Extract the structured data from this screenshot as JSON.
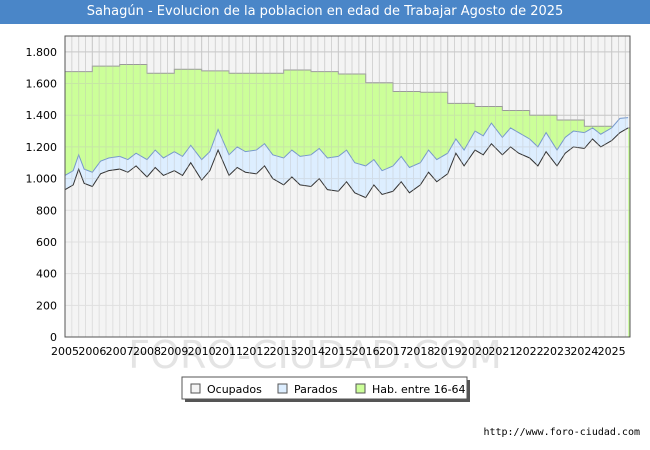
{
  "chart_data": {
    "type": "area",
    "title": "Sahagún - Evolucion de la poblacion en edad de Trabajar Agosto de 2025",
    "xlabel": "",
    "ylabel": "",
    "ylim": [
      0,
      1900
    ],
    "yticks": [
      0,
      200,
      400,
      600,
      800,
      1000,
      1200,
      1400,
      1600,
      1800
    ],
    "ytick_labels": [
      "0",
      "200",
      "400",
      "600",
      "800",
      "1.000",
      "1.200",
      "1.400",
      "1.600",
      "1.800"
    ],
    "xlim": [
      2005,
      2025.67
    ],
    "xtick_labels": [
      "2005",
      "2006",
      "2007",
      "2008",
      "2009",
      "2010",
      "2011",
      "2012",
      "2013",
      "2014",
      "2015",
      "2016",
      "2017",
      "2018",
      "2019",
      "2020",
      "2021",
      "2022",
      "2023",
      "2024",
      "2025"
    ],
    "grid": true,
    "legend_position": "bottom",
    "series": [
      {
        "name": "Hab. entre 16-64",
        "color": "#ccff99",
        "stroke": "#9a9a9a",
        "x": [
          2005,
          2006,
          2007,
          2008,
          2009,
          2010,
          2011,
          2012,
          2013,
          2014,
          2015,
          2016,
          2017,
          2018,
          2019,
          2020,
          2021,
          2022,
          2023,
          2024,
          2025
        ],
        "values": [
          1675,
          1710,
          1720,
          1665,
          1690,
          1680,
          1665,
          1665,
          1685,
          1675,
          1660,
          1605,
          1550,
          1545,
          1475,
          1455,
          1430,
          1400,
          1370,
          1330,
          1320
        ]
      },
      {
        "name": "Parados",
        "color": "#ddeeff",
        "stroke": "#7799cc",
        "x": [
          2005,
          2005.3,
          2005.5,
          2005.7,
          2006,
          2006.3,
          2006.6,
          2007,
          2007.3,
          2007.6,
          2008,
          2008.3,
          2008.6,
          2009,
          2009.3,
          2009.6,
          2010,
          2010.3,
          2010.6,
          2011,
          2011.3,
          2011.6,
          2012,
          2012.3,
          2012.6,
          2013,
          2013.3,
          2013.6,
          2014,
          2014.3,
          2014.6,
          2015,
          2015.3,
          2015.6,
          2016,
          2016.3,
          2016.6,
          2017,
          2017.3,
          2017.6,
          2018,
          2018.3,
          2018.6,
          2019,
          2019.3,
          2019.6,
          2020,
          2020.3,
          2020.6,
          2021,
          2021.3,
          2021.6,
          2022,
          2022.3,
          2022.6,
          2023,
          2023.3,
          2023.6,
          2024,
          2024.3,
          2024.6,
          2025,
          2025.3,
          2025.6
        ],
        "values": [
          1020,
          1050,
          1150,
          1060,
          1040,
          1110,
          1130,
          1140,
          1120,
          1160,
          1120,
          1180,
          1130,
          1170,
          1140,
          1210,
          1120,
          1170,
          1310,
          1150,
          1200,
          1170,
          1180,
          1220,
          1150,
          1130,
          1180,
          1140,
          1150,
          1190,
          1130,
          1140,
          1180,
          1100,
          1080,
          1120,
          1050,
          1080,
          1140,
          1070,
          1100,
          1180,
          1120,
          1160,
          1250,
          1180,
          1300,
          1270,
          1350,
          1260,
          1320,
          1290,
          1250,
          1200,
          1290,
          1180,
          1260,
          1300,
          1290,
          1320,
          1280,
          1320,
          1380,
          1385
        ]
      },
      {
        "name": "Ocupados",
        "color": "#f4f4f4",
        "stroke": "#333333",
        "x": [
          2005,
          2005.3,
          2005.5,
          2005.7,
          2006,
          2006.3,
          2006.6,
          2007,
          2007.3,
          2007.6,
          2008,
          2008.3,
          2008.6,
          2009,
          2009.3,
          2009.6,
          2010,
          2010.3,
          2010.6,
          2011,
          2011.3,
          2011.6,
          2012,
          2012.3,
          2012.6,
          2013,
          2013.3,
          2013.6,
          2014,
          2014.3,
          2014.6,
          2015,
          2015.3,
          2015.6,
          2016,
          2016.3,
          2016.6,
          2017,
          2017.3,
          2017.6,
          2018,
          2018.3,
          2018.6,
          2019,
          2019.3,
          2019.6,
          2020,
          2020.3,
          2020.6,
          2021,
          2021.3,
          2021.6,
          2022,
          2022.3,
          2022.6,
          2023,
          2023.3,
          2023.6,
          2024,
          2024.3,
          2024.6,
          2025,
          2025.3,
          2025.6
        ],
        "values": [
          930,
          960,
          1060,
          970,
          950,
          1030,
          1050,
          1060,
          1040,
          1080,
          1010,
          1070,
          1020,
          1050,
          1020,
          1100,
          990,
          1050,
          1180,
          1020,
          1070,
          1040,
          1030,
          1080,
          1000,
          960,
          1010,
          960,
          950,
          1000,
          930,
          920,
          980,
          910,
          880,
          960,
          900,
          920,
          980,
          910,
          960,
          1040,
          980,
          1030,
          1160,
          1080,
          1180,
          1150,
          1220,
          1150,
          1200,
          1160,
          1130,
          1080,
          1170,
          1080,
          1160,
          1200,
          1190,
          1250,
          1200,
          1240,
          1290,
          1320
        ]
      }
    ]
  },
  "legend": {
    "items": [
      {
        "label": "Ocupados",
        "color": "#f4f4f4",
        "border": "#555555"
      },
      {
        "label": "Parados",
        "color": "#ddeeff",
        "border": "#555555"
      },
      {
        "label": "Hab. entre 16-64",
        "color": "#ccff99",
        "border": "#555555"
      }
    ]
  },
  "watermark": "FORO-CIUDAD.COM",
  "footer_url": "http://www.foro-ciudad.com"
}
